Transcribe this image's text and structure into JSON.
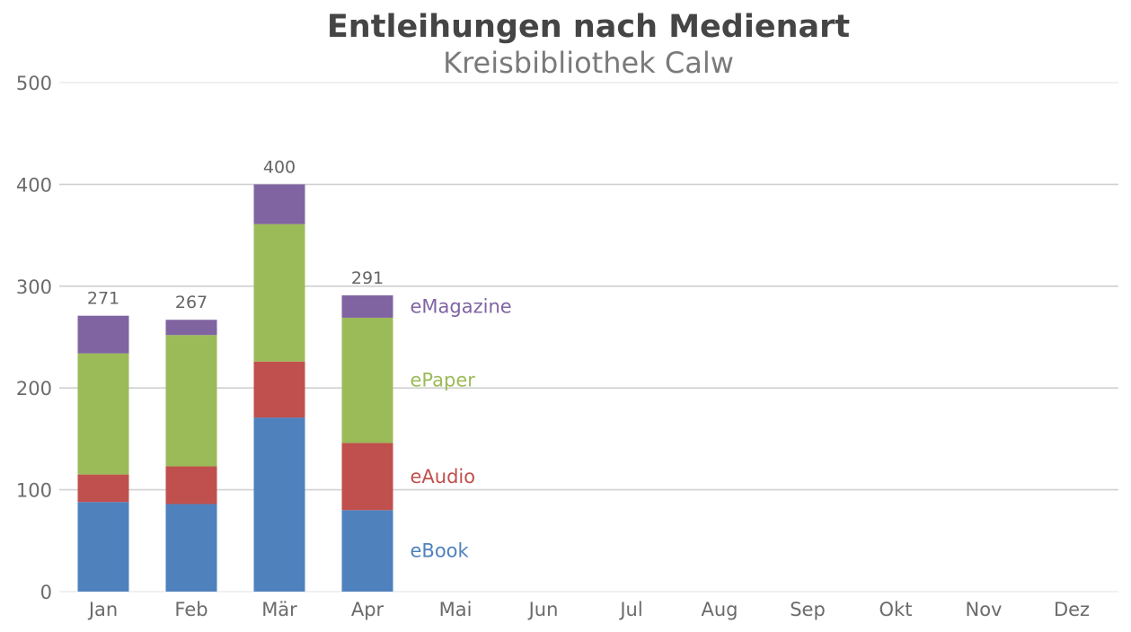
{
  "chart_data": {
    "type": "bar",
    "stacked": true,
    "title": "Entleihungen nach Medienart",
    "subtitle": "Kreisbibliothek Calw",
    "categories": [
      "Jan",
      "Feb",
      "Mär",
      "Apr",
      "Mai",
      "Jun",
      "Jul",
      "Aug",
      "Sep",
      "Okt",
      "Nov",
      "Dez"
    ],
    "series": [
      {
        "name": "eBook",
        "color": "#4f81bd",
        "values": [
          88,
          86,
          171,
          80,
          null,
          null,
          null,
          null,
          null,
          null,
          null,
          null
        ]
      },
      {
        "name": "eAudio",
        "color": "#c0504d",
        "values": [
          27,
          37,
          55,
          66,
          null,
          null,
          null,
          null,
          null,
          null,
          null,
          null
        ]
      },
      {
        "name": "ePaper",
        "color": "#9bbb59",
        "values": [
          119,
          129,
          135,
          123,
          null,
          null,
          null,
          null,
          null,
          null,
          null,
          null
        ]
      },
      {
        "name": "eMagazine",
        "color": "#8064a2",
        "values": [
          37,
          15,
          39,
          22,
          null,
          null,
          null,
          null,
          null,
          null,
          null,
          null
        ]
      }
    ],
    "totals": [
      271,
      267,
      400,
      291,
      null,
      null,
      null,
      null,
      null,
      null,
      null,
      null
    ],
    "ylim": [
      0,
      500
    ],
    "yticks": [
      0,
      100,
      200,
      300,
      400,
      500
    ],
    "grid": true,
    "legend": "inline-right-of-last-bar"
  }
}
